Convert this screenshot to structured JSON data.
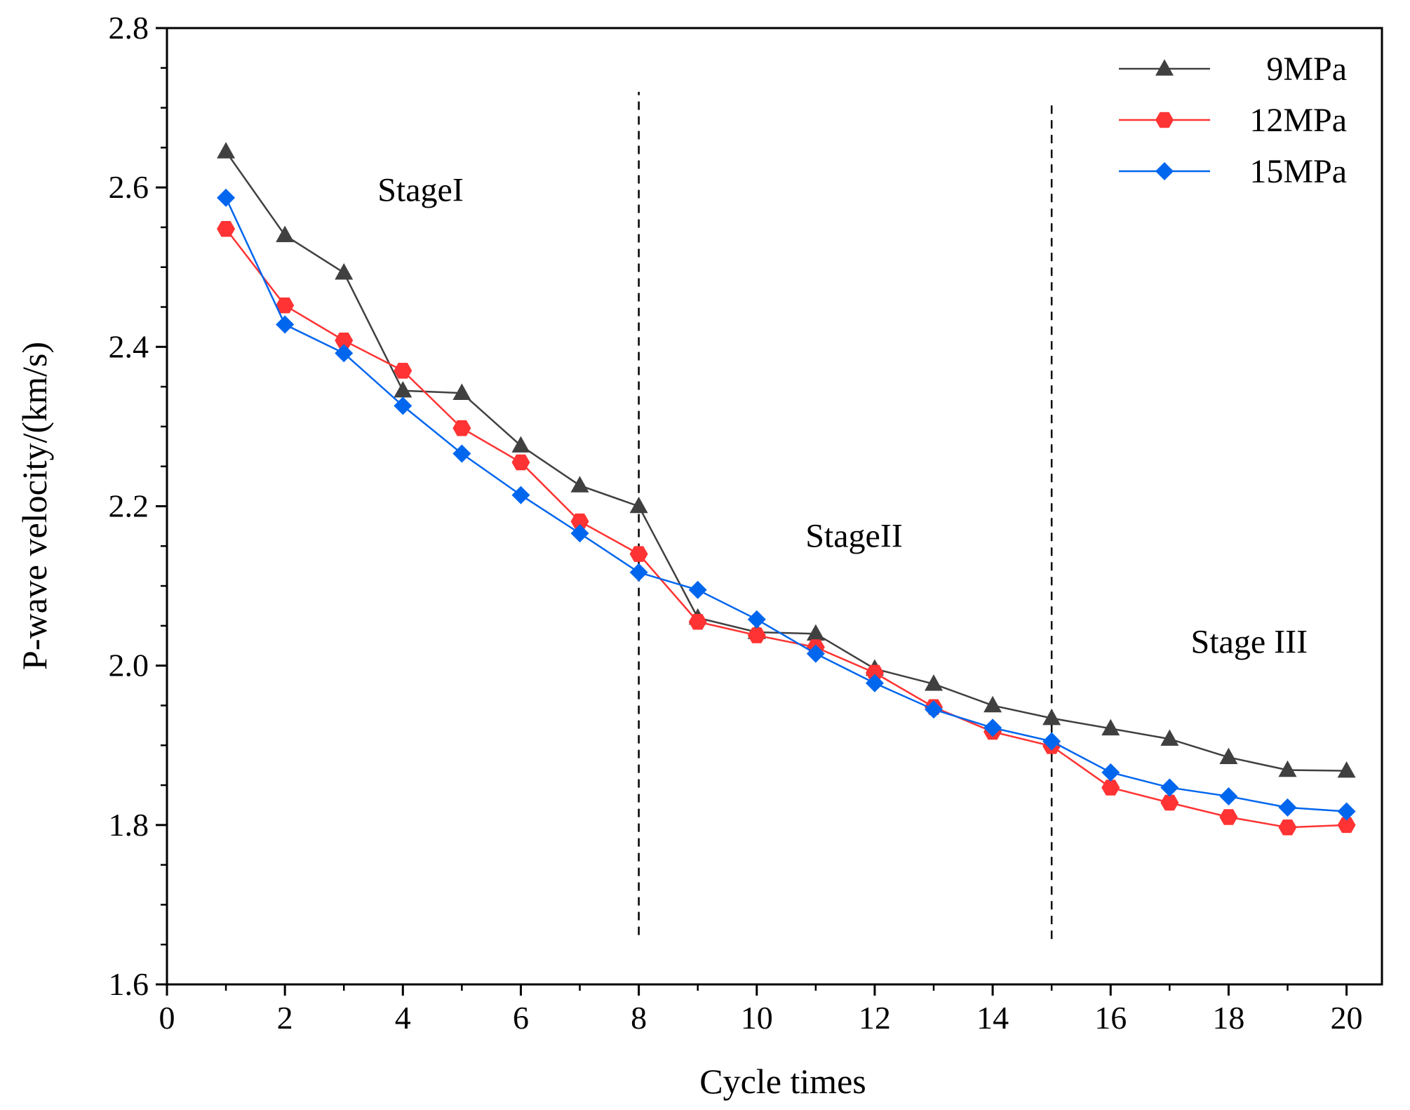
{
  "chart_data": {
    "type": "line",
    "title": "",
    "xlabel": "Cycle times",
    "ylabel": "P-wave velocity/(km/s)",
    "xlim": [
      0,
      20.6
    ],
    "ylim": [
      1.6,
      2.8
    ],
    "xticks": [
      0,
      2,
      4,
      6,
      8,
      10,
      12,
      14,
      16,
      18,
      20
    ],
    "yticks": [
      1.6,
      1.8,
      2.0,
      2.2,
      2.4,
      2.6,
      2.8
    ],
    "xtick_labels": [
      "0",
      "2",
      "4",
      "6",
      "8",
      "10",
      "12",
      "14",
      "16",
      "18",
      "20"
    ],
    "ytick_labels": [
      "1.6",
      "1.8",
      "2.0",
      "2.2",
      "2.4",
      "2.6",
      "2.8"
    ],
    "legend_position": "top-right",
    "x": [
      1,
      2,
      3,
      4,
      5,
      6,
      7,
      8,
      9,
      10,
      11,
      12,
      13,
      14,
      15,
      16,
      17,
      18,
      19,
      20
    ],
    "series": [
      {
        "name": "9MPa",
        "color": "#404040",
        "marker": "triangle",
        "values": [
          2.645,
          2.54,
          2.493,
          2.345,
          2.342,
          2.276,
          2.226,
          2.2,
          2.06,
          2.042,
          2.04,
          1.996,
          1.977,
          1.95,
          1.934,
          1.921,
          1.908,
          1.885,
          1.869,
          1.868
        ]
      },
      {
        "name": "12MPa",
        "color": "#ff3333",
        "marker": "hexagon",
        "values": [
          2.548,
          2.452,
          2.408,
          2.37,
          2.298,
          2.255,
          2.181,
          2.14,
          2.055,
          2.038,
          2.023,
          1.991,
          1.948,
          1.917,
          1.899,
          1.847,
          1.828,
          1.81,
          1.797,
          1.8
        ]
      },
      {
        "name": "15MPa",
        "color": "#0066ee",
        "marker": "diamond",
        "values": [
          2.587,
          2.428,
          2.392,
          2.326,
          2.266,
          2.214,
          2.166,
          2.117,
          2.095,
          2.058,
          2.015,
          1.978,
          1.945,
          1.922,
          1.905,
          1.866,
          1.847,
          1.836,
          1.822,
          1.817
        ]
      }
    ],
    "vlines": [
      {
        "x": 8,
        "y_from": 1.662,
        "y_to": 2.72
      },
      {
        "x": 15,
        "y_from": 1.657,
        "y_to": 2.707
      }
    ],
    "annotations": [
      {
        "text": "StageI",
        "x": 4.3,
        "y": 2.597
      },
      {
        "text": "StageII",
        "x": 11.65,
        "y": 2.163
      },
      {
        "text": "Stage III",
        "x": 18.35,
        "y": 2.03
      }
    ]
  }
}
